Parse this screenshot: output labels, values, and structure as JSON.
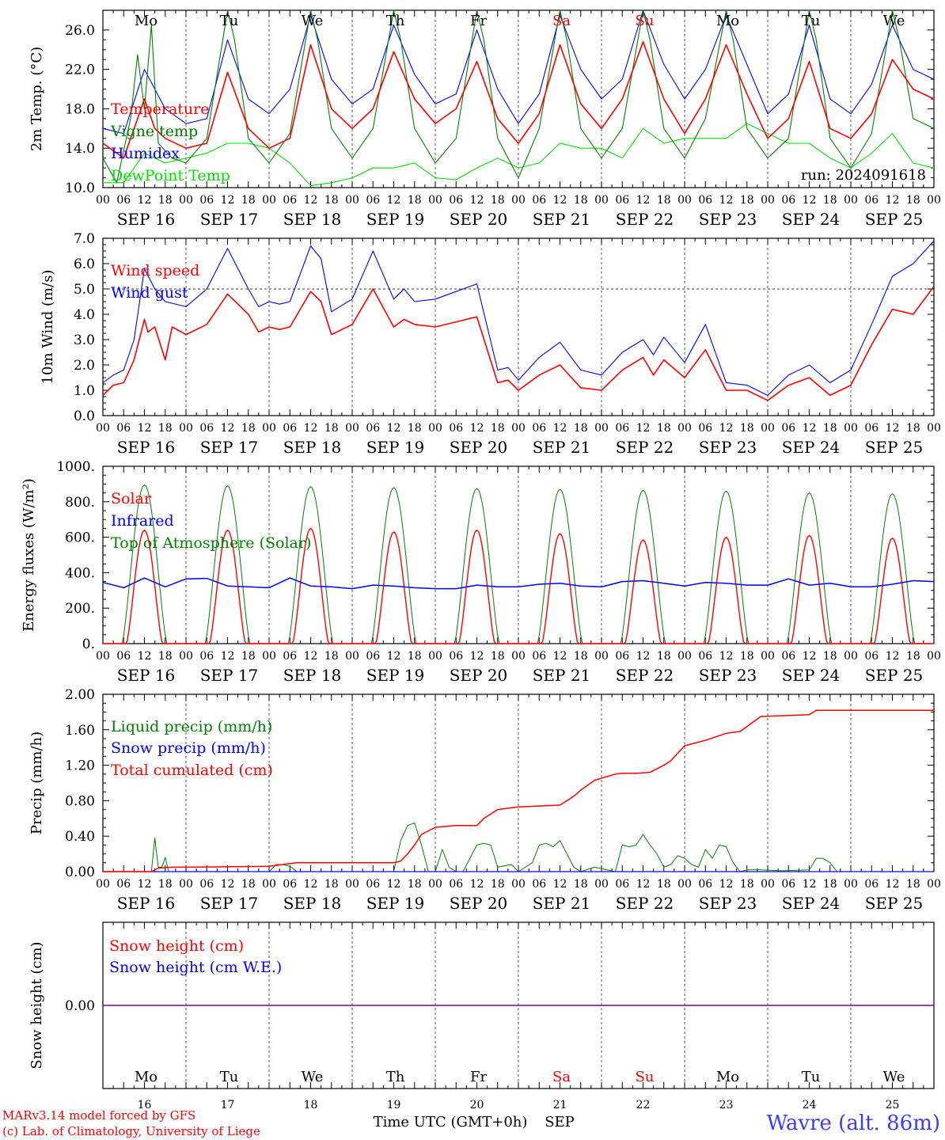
{
  "run_label": "run: 2024091618",
  "x_axis": {
    "hours": [
      "00",
      "06",
      "12",
      "18"
    ],
    "end_hour": "00",
    "dates": [
      "SEP 16",
      "SEP 17",
      "SEP 18",
      "SEP 19",
      "SEP 20",
      "SEP 21",
      "SEP 22",
      "SEP 23",
      "SEP 24",
      "SEP 25"
    ],
    "weekdays": [
      "Mo",
      "Tu",
      "We",
      "Th",
      "Fr",
      "Sa",
      "Su",
      "Mo",
      "Tu",
      "We"
    ],
    "weekend_flags": [
      false,
      false,
      false,
      false,
      false,
      true,
      true,
      false,
      false,
      false
    ],
    "day_numbers": [
      "16",
      "17",
      "18",
      "19",
      "20",
      "21",
      "22",
      "23",
      "24",
      "25"
    ],
    "time_label": "Time UTC (GMT+0h)",
    "month_label": "SEP"
  },
  "colors": {
    "red": "#ff0000",
    "green": "#008000",
    "blue": "#0000ff",
    "lightgreen": "#00e000",
    "purple": "#800080",
    "station_blue": "#3b3bff"
  },
  "footer": {
    "model": "MARv3.14 model forced by GFS",
    "credit": "(c) Lab. of Climatology, University of Liege",
    "station": "Wavre (alt. 86m)"
  },
  "chart_data": [
    {
      "type": "line",
      "ylabel": "2m Temp. (°C)",
      "ylim": [
        10,
        28
      ],
      "yticks": [
        "10.0",
        "14.0",
        "18.0",
        "22.0",
        "26.0"
      ],
      "grid": false,
      "series": [
        {
          "name": "Temperature",
          "color": "#ff0000",
          "x_hours": [
            0,
            6,
            12,
            15,
            18,
            24,
            30,
            36,
            42,
            48,
            54,
            60,
            66,
            72,
            78,
            84,
            90,
            96,
            102,
            108,
            114,
            120,
            126,
            132,
            138,
            144,
            150,
            156,
            162,
            168,
            174,
            180,
            186,
            192,
            198,
            204,
            210,
            216,
            222,
            228,
            234,
            240
          ],
          "values": [
            14.5,
            13.0,
            19.0,
            16.0,
            15.0,
            14.0,
            14.5,
            21.7,
            16.0,
            14.0,
            15.0,
            24.5,
            18.0,
            16.0,
            18.0,
            23.8,
            19.0,
            16.5,
            18.0,
            22.8,
            17.0,
            14.5,
            17.5,
            24.5,
            18.5,
            16.0,
            19.0,
            24.8,
            19.0,
            15.5,
            19.0,
            24.5,
            19.5,
            15.0,
            17.0,
            22.8,
            16.0,
            15.0,
            17.5,
            23.0,
            20.0,
            19.0
          ]
        },
        {
          "name": "Vigne temp",
          "color": "#008000",
          "x_hours": [
            0,
            4,
            8,
            10,
            12,
            14,
            16,
            20,
            24,
            30,
            36,
            38,
            42,
            48,
            54,
            60,
            62,
            66,
            72,
            78,
            84,
            86,
            90,
            96,
            102,
            108,
            110,
            114,
            120,
            126,
            132,
            134,
            138,
            144,
            150,
            156,
            158,
            162,
            168,
            174,
            180,
            182,
            186,
            192,
            198,
            204,
            206,
            210,
            216,
            222,
            228,
            230,
            234,
            240
          ],
          "values": [
            13.0,
            10.5,
            17.0,
            23.5,
            18.0,
            26.5,
            14.5,
            13.0,
            12.5,
            15.0,
            28.0,
            25.0,
            15.0,
            12.5,
            15.5,
            28.0,
            25.0,
            16.0,
            13.0,
            16.0,
            28.0,
            25.0,
            16.0,
            12.5,
            15.0,
            28.0,
            25.0,
            15.0,
            11.0,
            16.0,
            28.0,
            25.0,
            16.0,
            13.0,
            16.0,
            28.0,
            25.0,
            16.0,
            13.0,
            17.0,
            28.0,
            25.0,
            16.0,
            13.0,
            15.0,
            28.0,
            25.0,
            15.0,
            12.0,
            15.5,
            28.0,
            25.0,
            17.0,
            16.0
          ]
        },
        {
          "name": "Humidex",
          "color": "#0000ff",
          "x_hours": [
            0,
            6,
            12,
            18,
            24,
            30,
            36,
            42,
            48,
            54,
            60,
            66,
            72,
            78,
            84,
            90,
            96,
            102,
            108,
            114,
            120,
            126,
            132,
            138,
            144,
            150,
            156,
            162,
            168,
            174,
            180,
            186,
            192,
            198,
            204,
            210,
            216,
            222,
            228,
            234,
            240
          ],
          "values": [
            16.0,
            15.5,
            22.0,
            18.0,
            16.5,
            17.0,
            25.0,
            19.0,
            17.5,
            20.0,
            27.5,
            21.0,
            18.5,
            20.0,
            26.5,
            21.5,
            18.5,
            19.5,
            26.0,
            20.0,
            16.5,
            19.5,
            27.5,
            22.0,
            19.0,
            21.0,
            28.0,
            22.5,
            19.0,
            22.0,
            27.5,
            22.5,
            17.5,
            19.5,
            26.5,
            19.0,
            17.5,
            20.5,
            26.5,
            22.0,
            21.0
          ]
        },
        {
          "name": "DewPoint Temp",
          "color": "#00e000",
          "x_hours": [
            0,
            6,
            12,
            18,
            24,
            30,
            36,
            42,
            48,
            54,
            60,
            66,
            72,
            78,
            84,
            90,
            96,
            102,
            108,
            114,
            120,
            126,
            132,
            138,
            144,
            150,
            156,
            162,
            168,
            174,
            180,
            186,
            192,
            198,
            204,
            210,
            216,
            222,
            228,
            234,
            240
          ],
          "values": [
            10.5,
            10.5,
            13.5,
            12.5,
            13.0,
            13.5,
            14.5,
            14.5,
            14.0,
            12.5,
            10.2,
            10.5,
            11.0,
            12.0,
            12.0,
            12.5,
            11.0,
            10.8,
            12.0,
            13.0,
            12.0,
            12.5,
            14.5,
            14.0,
            14.0,
            13.0,
            16.0,
            14.5,
            15.0,
            15.0,
            15.0,
            16.5,
            15.5,
            14.5,
            14.5,
            13.0,
            12.0,
            13.5,
            15.5,
            12.5,
            12.0
          ]
        }
      ]
    },
    {
      "type": "line",
      "ylabel": "10m Wind (m/s)",
      "ylim": [
        0,
        7
      ],
      "yticks": [
        "0.0",
        "1.0",
        "2.0",
        "3.0",
        "4.0",
        "5.0",
        "6.0",
        "7.0"
      ],
      "reference_line": 5.0,
      "grid": false,
      "series": [
        {
          "name": "Wind speed",
          "color": "#ff0000",
          "x_hours": [
            0,
            3,
            6,
            9,
            12,
            13,
            15,
            18,
            20,
            24,
            30,
            36,
            42,
            45,
            48,
            51,
            54,
            60,
            63,
            66,
            72,
            78,
            84,
            87,
            90,
            96,
            102,
            108,
            114,
            117,
            120,
            126,
            132,
            138,
            144,
            150,
            156,
            159,
            162,
            168,
            174,
            180,
            186,
            192,
            198,
            204,
            210,
            216,
            222,
            228,
            234,
            240
          ],
          "values": [
            0.8,
            1.2,
            1.3,
            2.2,
            3.8,
            3.3,
            3.5,
            2.2,
            3.5,
            3.2,
            3.6,
            4.8,
            4.0,
            3.3,
            3.5,
            3.4,
            3.5,
            4.9,
            4.5,
            3.2,
            3.6,
            5.0,
            3.5,
            3.8,
            3.6,
            3.5,
            3.7,
            3.9,
            1.3,
            1.4,
            1.0,
            1.6,
            2.0,
            1.1,
            1.0,
            1.8,
            2.3,
            1.6,
            2.2,
            1.5,
            2.6,
            1.0,
            1.0,
            0.6,
            1.2,
            1.5,
            0.8,
            1.2,
            2.8,
            4.2,
            4.0,
            5.1
          ]
        },
        {
          "name": "Wind gust",
          "color": "#0000ff",
          "x_hours": [
            0,
            3,
            6,
            9,
            12,
            15,
            18,
            24,
            30,
            36,
            42,
            45,
            48,
            51,
            54,
            60,
            63,
            66,
            72,
            78,
            84,
            87,
            90,
            96,
            102,
            108,
            114,
            117,
            120,
            126,
            132,
            138,
            144,
            150,
            156,
            159,
            162,
            168,
            174,
            180,
            186,
            192,
            198,
            204,
            210,
            216,
            222,
            228,
            234,
            240
          ],
          "values": [
            1.3,
            1.6,
            1.8,
            3.0,
            5.8,
            5.0,
            4.5,
            4.3,
            5.0,
            6.6,
            5.0,
            4.3,
            4.5,
            4.4,
            4.5,
            6.7,
            6.2,
            4.1,
            4.6,
            6.5,
            4.6,
            5.0,
            4.5,
            4.6,
            4.9,
            5.2,
            1.8,
            1.9,
            1.4,
            2.3,
            2.9,
            1.8,
            1.6,
            2.5,
            3.0,
            2.4,
            3.1,
            2.1,
            3.6,
            1.3,
            1.2,
            0.8,
            1.6,
            2.0,
            1.3,
            1.8,
            3.6,
            5.5,
            6.0,
            6.9
          ]
        }
      ]
    },
    {
      "type": "line",
      "ylabel": "Energy fluxes (W/m²)",
      "ylim": [
        0,
        1000
      ],
      "yticks": [
        "0.",
        "200.",
        "400.",
        "600.",
        "800.",
        "1000."
      ],
      "grid": false,
      "series": [
        {
          "name": "Solar",
          "color": "#ff0000",
          "peaks": [
            640,
            640,
            650,
            630,
            640,
            620,
            585,
            600,
            610,
            595
          ]
        },
        {
          "name": "Infrared",
          "color": "#0000ff",
          "x_hours": [
            0,
            6,
            12,
            18,
            24,
            30,
            36,
            42,
            48,
            54,
            60,
            66,
            72,
            78,
            84,
            90,
            96,
            102,
            108,
            114,
            120,
            126,
            132,
            138,
            144,
            150,
            156,
            162,
            168,
            174,
            180,
            186,
            192,
            198,
            204,
            210,
            216,
            222,
            228,
            234,
            240
          ],
          "values": [
            345,
            315,
            370,
            320,
            365,
            368,
            325,
            320,
            315,
            370,
            325,
            320,
            310,
            330,
            325,
            315,
            310,
            310,
            330,
            320,
            320,
            335,
            340,
            325,
            320,
            350,
            355,
            340,
            325,
            345,
            340,
            330,
            330,
            365,
            330,
            340,
            320,
            320,
            335,
            355,
            350
          ]
        },
        {
          "name": "Top of Atmosphere (Solar)",
          "color": "#008000",
          "peaks": [
            895,
            890,
            885,
            880,
            875,
            870,
            865,
            860,
            850,
            845
          ]
        }
      ]
    },
    {
      "type": "line",
      "ylabel": "Precip (mm/h)",
      "ylim": [
        0,
        2.0
      ],
      "yticks": [
        "0.00",
        "0.40",
        "0.80",
        "1.20",
        "1.60",
        "2.00"
      ],
      "grid": false,
      "series": [
        {
          "name": "Liquid precip (mm/h)",
          "color": "#008000",
          "x_hours": [
            0,
            14,
            15,
            16,
            17,
            18,
            19,
            20,
            24,
            48,
            50,
            52,
            54,
            56,
            84,
            86,
            88,
            90,
            92,
            94,
            96,
            98,
            100,
            102,
            104,
            108,
            110,
            112,
            114,
            118,
            120,
            124,
            126,
            128,
            130,
            132,
            134,
            136,
            138,
            142,
            148,
            150,
            152,
            154,
            156,
            158,
            160,
            162,
            164,
            166,
            168,
            170,
            172,
            174,
            176,
            178,
            180,
            182,
            184,
            186,
            190,
            196,
            204,
            206,
            208,
            210,
            212,
            216,
            240
          ],
          "values": [
            0,
            0,
            0.38,
            0.05,
            0.05,
            0.16,
            0.0,
            0,
            0,
            0,
            0.08,
            0.08,
            0.06,
            0.0,
            0,
            0.35,
            0.52,
            0.55,
            0.3,
            0.0,
            0,
            0.25,
            0.05,
            0,
            0,
            0.3,
            0.32,
            0.3,
            0.05,
            0.08,
            0,
            0.1,
            0.3,
            0.32,
            0.28,
            0.35,
            0.2,
            0.05,
            0,
            0.05,
            0,
            0.3,
            0.28,
            0.3,
            0.42,
            0.3,
            0.2,
            0.05,
            0.08,
            0.18,
            0.15,
            0.08,
            0.05,
            0.25,
            0.15,
            0.3,
            0.28,
            0.1,
            0,
            0.02,
            0.02,
            0.01,
            0.02,
            0.15,
            0.15,
            0.1,
            0.0,
            0,
            0
          ]
        },
        {
          "name": "Snow precip (mm/h)",
          "color": "#0000ff",
          "x_hours": [
            0,
            240
          ],
          "values": [
            0,
            0
          ]
        },
        {
          "name": "Total cumulated (cm)",
          "color": "#ff0000",
          "x_hours": [
            0,
            14,
            16,
            20,
            24,
            48,
            52,
            56,
            60,
            84,
            86,
            88,
            90,
            92,
            94,
            96,
            102,
            108,
            110,
            114,
            120,
            126,
            132,
            134,
            136,
            138,
            142,
            148,
            150,
            154,
            158,
            162,
            164,
            168,
            174,
            180,
            184,
            190,
            204,
            206,
            240
          ],
          "values": [
            0,
            0,
            0.04,
            0.05,
            0.05,
            0.06,
            0.08,
            0.1,
            0.1,
            0.1,
            0.12,
            0.2,
            0.3,
            0.42,
            0.46,
            0.5,
            0.52,
            0.52,
            0.6,
            0.7,
            0.73,
            0.74,
            0.75,
            0.8,
            0.85,
            0.92,
            1.03,
            1.1,
            1.11,
            1.11,
            1.12,
            1.2,
            1.25,
            1.42,
            1.48,
            1.56,
            1.58,
            1.75,
            1.77,
            1.82,
            1.82
          ]
        }
      ]
    },
    {
      "type": "line",
      "ylabel": "Snow height (cm)",
      "yticks": [
        "0.00"
      ],
      "grid": false,
      "series": [
        {
          "name": "Snow height (cm)",
          "color": "#ff0000",
          "x_hours": [
            0,
            240
          ],
          "values": [
            0,
            0
          ]
        },
        {
          "name": "Snow height (cm W.E.)",
          "color": "#0000ff",
          "x_hours": [
            0,
            240
          ],
          "values": [
            0,
            0
          ]
        }
      ]
    }
  ]
}
